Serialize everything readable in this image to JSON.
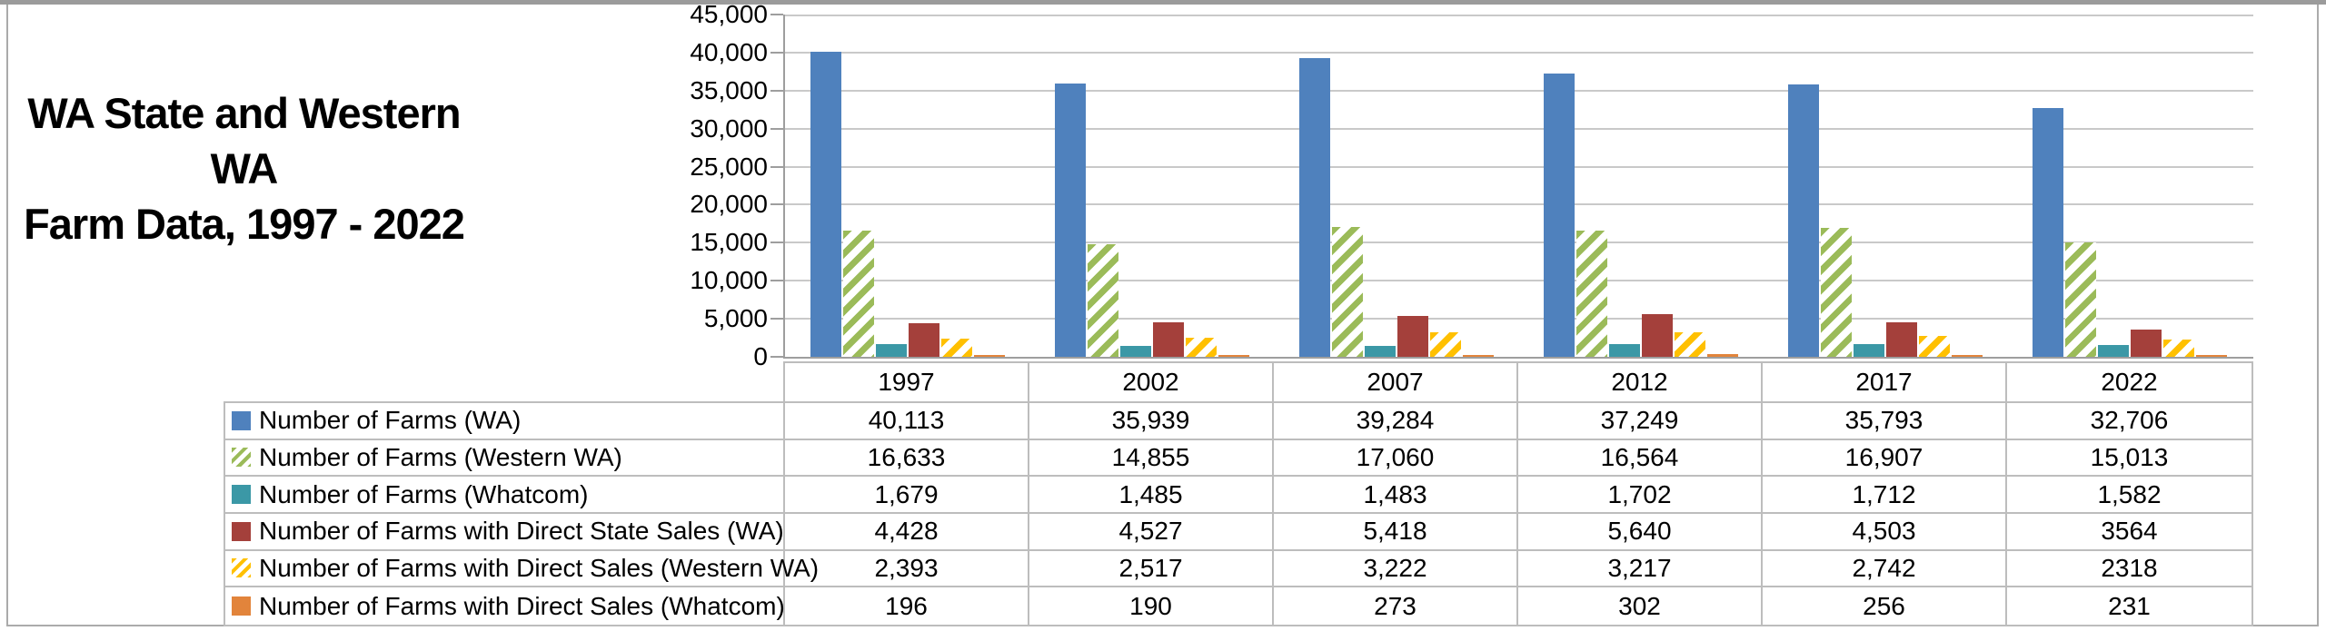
{
  "chart_data": {
    "type": "bar",
    "title": "WA State and Western WA Farm Data, 1997 - 2022",
    "title_lines": [
      "WA State and Western WA",
      "Farm Data, 1997 - 2022"
    ],
    "categories": [
      "1997",
      "2002",
      "2007",
      "2012",
      "2017",
      "2022"
    ],
    "series": [
      {
        "name": "Number of Farms (WA)",
        "color": "#4F81BD",
        "fill": "solid",
        "values": [
          40113,
          35939,
          39284,
          37249,
          35793,
          32706
        ],
        "display": [
          "40,113",
          "35,939",
          "39,284",
          "37,249",
          "35,793",
          "32,706"
        ]
      },
      {
        "name": "Number of Farms (Western WA)",
        "color": "#9BBB59",
        "fill": "diagonal-stripes",
        "values": [
          16633,
          14855,
          17060,
          16564,
          16907,
          15013
        ],
        "display": [
          "16,633",
          "14,855",
          "17,060",
          "16,564",
          "16,907",
          "15,013"
        ]
      },
      {
        "name": "Number of Farms (Whatcom)",
        "color": "#3B98A6",
        "fill": "solid",
        "values": [
          1679,
          1485,
          1483,
          1702,
          1712,
          1582
        ],
        "display": [
          "1,679",
          "1,485",
          "1,483",
          "1,702",
          "1,712",
          "1,582"
        ]
      },
      {
        "name": "Number of Farms with Direct State Sales (WA)",
        "color": "#A4403B",
        "fill": "solid",
        "values": [
          4428,
          4527,
          5418,
          5640,
          4503,
          3564
        ],
        "display": [
          "4,428",
          "4,527",
          "5,418",
          "5,640",
          "4,503",
          "3564"
        ]
      },
      {
        "name": "Number of Farms with Direct Sales (Western WA)",
        "color": "#FFC000",
        "fill": "diagonal-stripes",
        "values": [
          2393,
          2517,
          3222,
          3217,
          2742,
          2318
        ],
        "display": [
          "2,393",
          "2,517",
          "3,222",
          "3,217",
          "2,742",
          "2318"
        ]
      },
      {
        "name": "Number of Farms with Direct Sales (Whatcom)",
        "color": "#E2843B",
        "fill": "solid",
        "values": [
          196,
          190,
          273,
          302,
          256,
          231
        ],
        "display": [
          "196",
          "190",
          "273",
          "302",
          "256",
          "231"
        ]
      }
    ],
    "ylim": [
      0,
      45000
    ],
    "ytick_step": 5000,
    "ytick_labels": [
      "0",
      "5,000",
      "10,000",
      "15,000",
      "20,000",
      "25,000",
      "30,000",
      "35,000",
      "40,000",
      "45,000"
    ],
    "grid": true,
    "legend_position": "table-left",
    "colors": {
      "gridline": "#C9C9C9",
      "axis": "#9E9E9E",
      "table_border": "#BDBDBD",
      "frame": "#ABABAB",
      "text": "#000000"
    }
  }
}
